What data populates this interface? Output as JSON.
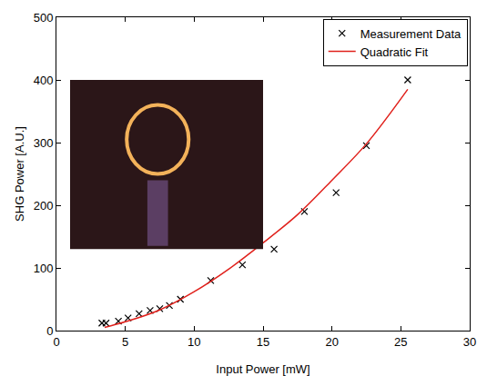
{
  "chart_data": {
    "type": "scatter",
    "x_label": "Input Power [mW]",
    "y_label": "SHG Power [A.U.]",
    "series": [
      {
        "name": "Measurement Data",
        "type": "scatter",
        "marker": "x",
        "color": "#000000",
        "x": [
          3.3,
          3.6,
          4.5,
          5.2,
          6.0,
          6.8,
          7.5,
          8.2,
          9.0,
          11.2,
          13.5,
          15.8,
          18.0,
          20.3,
          22.5,
          25.5
        ],
        "values": [
          12,
          12,
          15,
          20,
          27,
          32,
          35,
          40,
          50,
          80,
          105,
          130,
          190,
          220,
          295,
          400
        ]
      },
      {
        "name": "Quadratic Fit",
        "type": "line",
        "line_style": "solid",
        "color": "#e0201b",
        "x": [
          3.5,
          5,
          7.5,
          10,
          12.5,
          15,
          17.5,
          20,
          22.5,
          25.5
        ],
        "values": [
          5,
          14,
          33,
          62,
          98,
          140,
          185,
          240,
          298,
          385
        ]
      }
    ],
    "xlim": [
      0,
      30
    ],
    "xticks": [
      0,
      5,
      10,
      15,
      20,
      25,
      30
    ],
    "ylim": [
      0,
      500
    ],
    "yticks": [
      0,
      100,
      200,
      300,
      400,
      500
    ],
    "grid": false,
    "legend": "upper right"
  }
}
